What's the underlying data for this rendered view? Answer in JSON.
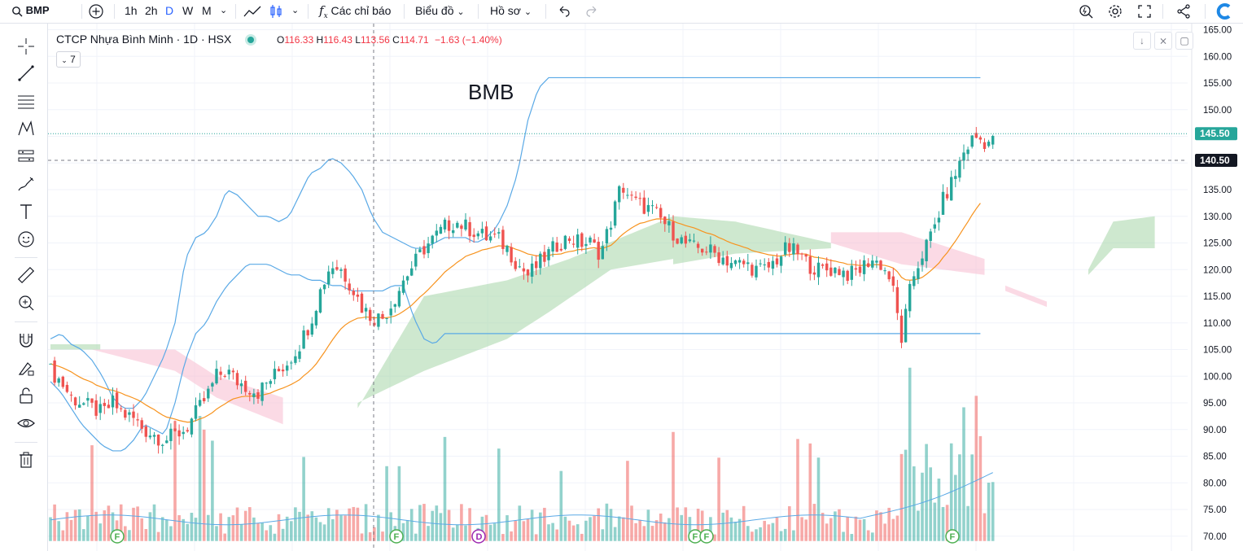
{
  "toolbar": {
    "symbol": "BMP",
    "intervals": [
      "1h",
      "2h",
      "D",
      "W",
      "M"
    ],
    "active_interval": "D",
    "indicators_label": "Các chỉ báo",
    "chart_label": "Biểu đồ",
    "profile_label": "Hồ sơ"
  },
  "legend": {
    "name": "CTCP Nhựa Bình Minh · 1D · HSX",
    "o_label": "O",
    "o": "116.33",
    "h_label": "H",
    "h": "116.43",
    "l_label": "L",
    "l": "113.56",
    "c_label": "C",
    "c": "114.71",
    "change": "−1.63 (−1.40%)",
    "indicator_count": "7"
  },
  "annotation": "BMB",
  "price_axis": {
    "ticks": [
      "165.00",
      "160.00",
      "155.00",
      "150.00",
      "145.00",
      "140.00",
      "135.00",
      "130.00",
      "125.00",
      "120.00",
      "115.00",
      "110.00",
      "105.00",
      "100.00",
      "95.00",
      "90.00",
      "85.00",
      "80.00",
      "75.00",
      "70.00"
    ],
    "last_price_label": "145.50",
    "crosshair_label": "140.50"
  },
  "colors": {
    "up": "#26a69a",
    "down": "#ef5350",
    "bollinger": "#5aa9e6",
    "ma": "#f7931e",
    "cloud_green": "#a5d6a7",
    "cloud_red": "#f8bbd0",
    "last_price": "#26a69a",
    "crosshair_tag": "#131722"
  },
  "markers": [
    "F",
    "F",
    "D",
    "F",
    "F",
    "F"
  ],
  "chart_data": {
    "type": "candlestick",
    "title": "CTCP Nhựa Bình Minh · 1D · HSX",
    "ylim": [
      70,
      165
    ],
    "close_path": [
      [
        0,
        101
      ],
      [
        5,
        99
      ],
      [
        10,
        96
      ],
      [
        15,
        95
      ],
      [
        20,
        94
      ],
      [
        25,
        93
      ],
      [
        30,
        95
      ],
      [
        35,
        93
      ],
      [
        40,
        92
      ],
      [
        45,
        90
      ],
      [
        50,
        89
      ],
      [
        55,
        88
      ],
      [
        60,
        89
      ],
      [
        65,
        90
      ],
      [
        70,
        93
      ],
      [
        75,
        96
      ],
      [
        80,
        100
      ],
      [
        85,
        101
      ],
      [
        90,
        99
      ],
      [
        95,
        98
      ],
      [
        100,
        97
      ],
      [
        105,
        99
      ],
      [
        110,
        101
      ],
      [
        115,
        103
      ],
      [
        120,
        106
      ],
      [
        125,
        110
      ],
      [
        130,
        116
      ],
      [
        135,
        121
      ],
      [
        140,
        120
      ],
      [
        145,
        117
      ],
      [
        150,
        113
      ],
      [
        155,
        111
      ],
      [
        160,
        111
      ],
      [
        165,
        114
      ],
      [
        170,
        118
      ],
      [
        175,
        121
      ],
      [
        180,
        124
      ],
      [
        185,
        126
      ],
      [
        190,
        128
      ],
      [
        195,
        129
      ],
      [
        200,
        128
      ],
      [
        205,
        127
      ],
      [
        210,
        126
      ],
      [
        215,
        126
      ],
      [
        220,
        124
      ],
      [
        225,
        121
      ],
      [
        230,
        119
      ],
      [
        235,
        121
      ],
      [
        240,
        123
      ],
      [
        245,
        125
      ],
      [
        250,
        126
      ],
      [
        255,
        125
      ],
      [
        260,
        125
      ],
      [
        265,
        123
      ],
      [
        270,
        129
      ],
      [
        275,
        136
      ],
      [
        280,
        133
      ],
      [
        285,
        132
      ],
      [
        290,
        131
      ],
      [
        295,
        129
      ],
      [
        300,
        127
      ],
      [
        305,
        125
      ],
      [
        310,
        124
      ],
      [
        315,
        124
      ],
      [
        320,
        123
      ],
      [
        325,
        122
      ],
      [
        330,
        121
      ],
      [
        335,
        121
      ],
      [
        340,
        120
      ],
      [
        345,
        120
      ],
      [
        350,
        122
      ],
      [
        355,
        124
      ],
      [
        360,
        123
      ],
      [
        365,
        121
      ],
      [
        370,
        120
      ],
      [
        375,
        120
      ],
      [
        380,
        120
      ],
      [
        385,
        119
      ],
      [
        390,
        120
      ],
      [
        395,
        122
      ],
      [
        400,
        121
      ],
      [
        405,
        118
      ],
      [
        410,
        107
      ],
      [
        415,
        118
      ],
      [
        420,
        123
      ],
      [
        425,
        127
      ],
      [
        430,
        133
      ],
      [
        435,
        137
      ],
      [
        440,
        142
      ],
      [
        445,
        145
      ],
      [
        450,
        144
      ]
    ],
    "bollinger_upper": [
      [
        0,
        107
      ],
      [
        5,
        108
      ],
      [
        10,
        106
      ],
      [
        15,
        105
      ],
      [
        20,
        103
      ],
      [
        25,
        100
      ],
      [
        30,
        96
      ],
      [
        35,
        94
      ],
      [
        40,
        94
      ],
      [
        45,
        96
      ],
      [
        50,
        100
      ],
      [
        55,
        104
      ],
      [
        60,
        110
      ],
      [
        65,
        122
      ],
      [
        70,
        126
      ],
      [
        75,
        127
      ],
      [
        80,
        130
      ],
      [
        85,
        135
      ],
      [
        90,
        134
      ],
      [
        95,
        132
      ],
      [
        100,
        130
      ],
      [
        105,
        130
      ],
      [
        110,
        129
      ],
      [
        115,
        130
      ],
      [
        120,
        134
      ],
      [
        125,
        138
      ],
      [
        130,
        139
      ],
      [
        135,
        141
      ],
      [
        140,
        140
      ],
      [
        145,
        138
      ],
      [
        150,
        135
      ],
      [
        155,
        130
      ],
      [
        160,
        127
      ],
      [
        165,
        126
      ],
      [
        170,
        125
      ],
      [
        175,
        124
      ],
      [
        180,
        124
      ],
      [
        185,
        125
      ],
      [
        190,
        126
      ],
      [
        195,
        126
      ],
      [
        200,
        126
      ],
      [
        205,
        125
      ],
      [
        210,
        126
      ],
      [
        215,
        128
      ],
      [
        220,
        132
      ],
      [
        225,
        138
      ],
      [
        230,
        148
      ],
      [
        235,
        154
      ],
      [
        240,
        156
      ]
    ],
    "bollinger_lower": [
      [
        0,
        99
      ],
      [
        5,
        97
      ],
      [
        10,
        94
      ],
      [
        15,
        91
      ],
      [
        20,
        89
      ],
      [
        25,
        87
      ],
      [
        30,
        86
      ],
      [
        35,
        86
      ],
      [
        40,
        88
      ],
      [
        45,
        91
      ],
      [
        50,
        90
      ],
      [
        55,
        89
      ],
      [
        60,
        95
      ],
      [
        65,
        103
      ],
      [
        70,
        108
      ],
      [
        75,
        110
      ],
      [
        80,
        114
      ],
      [
        85,
        117
      ],
      [
        90,
        119
      ],
      [
        95,
        121
      ],
      [
        100,
        121
      ],
      [
        105,
        121
      ],
      [
        110,
        120
      ],
      [
        115,
        119
      ],
      [
        120,
        119
      ],
      [
        125,
        118
      ],
      [
        130,
        118
      ],
      [
        135,
        117
      ],
      [
        140,
        117
      ],
      [
        145,
        116
      ],
      [
        150,
        116
      ],
      [
        155,
        116
      ],
      [
        160,
        116
      ],
      [
        165,
        117
      ],
      [
        170,
        117
      ],
      [
        175,
        111
      ],
      [
        180,
        107
      ],
      [
        185,
        106
      ],
      [
        190,
        108
      ]
    ],
    "volume_note": "bars colored by candle direction"
  }
}
